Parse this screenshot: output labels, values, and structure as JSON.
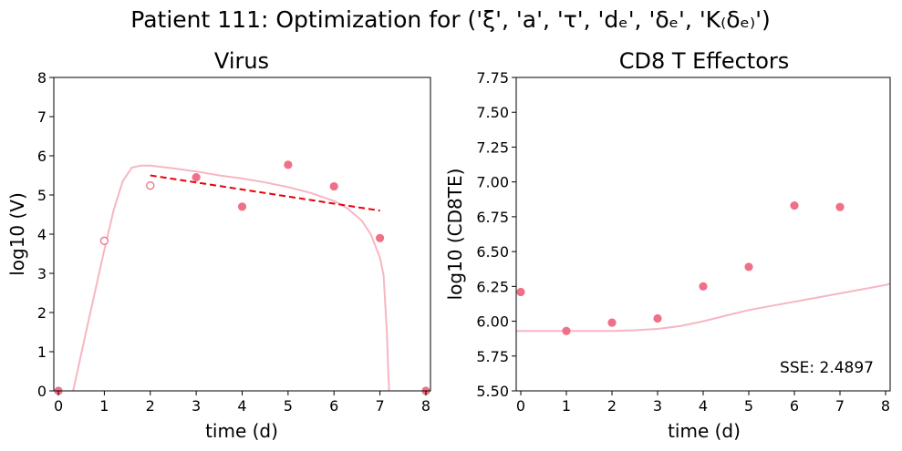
{
  "figure": {
    "suptitle": "Patient 111: Optimization for ('ξ', 'a', 'τ', 'dₑ', 'δₑ', 'K₍δₑ₎')"
  },
  "colors": {
    "data_points": "#f07087",
    "model_curve": "#f7b6c2",
    "fit_line": "#e8000b"
  },
  "chart_data": [
    {
      "type": "scatter",
      "title": "Virus",
      "xlabel": "time (d)",
      "ylabel": "log10 (V)",
      "xlim": [
        -0.1,
        8.1
      ],
      "ylim": [
        0,
        8
      ],
      "xticks": [
        0,
        1,
        2,
        3,
        4,
        5,
        6,
        7,
        8
      ],
      "yticks": [
        0,
        1,
        2,
        3,
        4,
        5,
        6,
        7,
        8
      ],
      "ytick_labels": [
        "0",
        "1",
        "2",
        "3",
        "4",
        "5",
        "6",
        "7",
        "8"
      ],
      "grid": false,
      "filled_points": {
        "x": [
          0,
          3,
          4,
          5,
          6,
          7,
          8
        ],
        "y": [
          0,
          5.45,
          4.7,
          5.77,
          5.22,
          3.9,
          0
        ]
      },
      "open_points": {
        "x": [
          1,
          2
        ],
        "y": [
          3.83,
          5.24
        ]
      },
      "model_curve": {
        "x": [
          0.32,
          0.6,
          1.0,
          1.2,
          1.4,
          1.6,
          1.8,
          2.0,
          2.5,
          3.0,
          3.5,
          4.0,
          4.5,
          5.0,
          5.5,
          6.0,
          6.3,
          6.6,
          6.8,
          7.0,
          7.08,
          7.15,
          7.18,
          7.2
        ],
        "y": [
          0,
          1.5,
          3.6,
          4.6,
          5.35,
          5.7,
          5.75,
          5.75,
          5.68,
          5.6,
          5.5,
          5.42,
          5.32,
          5.2,
          5.05,
          4.85,
          4.65,
          4.35,
          4.0,
          3.4,
          2.95,
          1.5,
          0.5,
          0
        ]
      },
      "fit_line": {
        "x": [
          2,
          7
        ],
        "y": [
          5.5,
          4.6
        ]
      }
    },
    {
      "type": "scatter",
      "title": "CD8 T Effectors",
      "xlabel": "time (d)",
      "ylabel": "log10 (CD8TE)",
      "xlim": [
        -0.1,
        8.1
      ],
      "ylim": [
        5.5,
        7.75
      ],
      "xticks": [
        0,
        1,
        2,
        3,
        4,
        5,
        6,
        7,
        8
      ],
      "yticks": [
        5.5,
        5.75,
        6.0,
        6.25,
        6.5,
        6.75,
        7.0,
        7.25,
        7.5,
        7.75
      ],
      "ytick_labels": [
        "5.50",
        "5.75",
        "6.00",
        "6.25",
        "6.50",
        "6.75",
        "7.00",
        "7.25",
        "7.50",
        "7.75"
      ],
      "grid": false,
      "filled_points": {
        "x": [
          0,
          1,
          2,
          3,
          4,
          5,
          6,
          7
        ],
        "y": [
          6.21,
          5.93,
          5.99,
          6.02,
          6.25,
          6.39,
          6.83,
          6.82
        ]
      },
      "model_curve": {
        "x": [
          -0.1,
          0.5,
          1.0,
          1.5,
          2.0,
          2.5,
          3.0,
          3.5,
          4.0,
          4.5,
          5.0,
          5.5,
          6.0,
          6.5,
          7.0,
          7.5,
          8.0,
          8.1
        ],
        "y": [
          5.93,
          5.93,
          5.93,
          5.93,
          5.93,
          5.935,
          5.945,
          5.965,
          6.0,
          6.04,
          6.08,
          6.11,
          6.14,
          6.17,
          6.2,
          6.23,
          6.26,
          6.27
        ]
      },
      "annotation": "SSE: 2.4897"
    }
  ]
}
